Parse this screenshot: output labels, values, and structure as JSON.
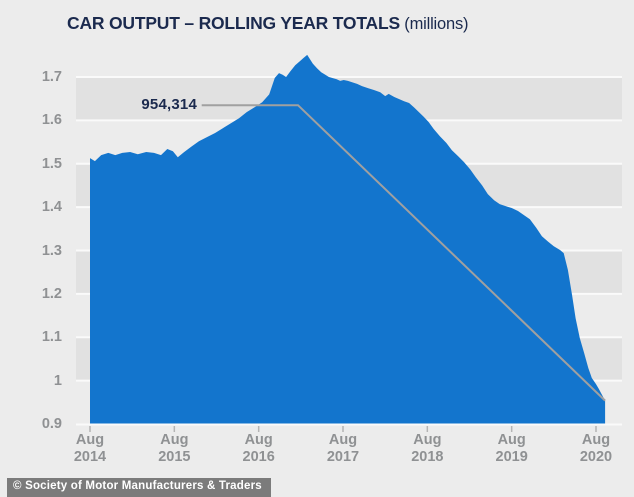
{
  "title": {
    "main": "CAR OUTPUT – ROLLING YEAR TOTALS",
    "suffix": " (millions)"
  },
  "footer": {
    "credit": "© Society of Motor Manufacturers & Traders"
  },
  "colors": {
    "background": "#ececec",
    "band": "#e1e1e1",
    "gridline": "#fafafa",
    "area_blue": "#1375cd",
    "navy_text": "#1b2a4e",
    "gray_text": "#8f9193",
    "leader_line": "#a0a0a0",
    "tick": "#b5b5b5",
    "footer_bg": "#7b7b7b",
    "footer_text": "#ffffff"
  },
  "chart_data": {
    "type": "area",
    "title": "CAR OUTPUT – ROLLING YEAR TOTALS (millions)",
    "xlabel": "",
    "ylabel": "millions (rolling year total)",
    "x_unit": "months since Aug 2014",
    "xlim": [
      0,
      73.3
    ],
    "ylim": [
      0.9,
      1.7
    ],
    "grid": "horizontal alternating bands with white gridlines every 0.1",
    "grid_bands": [
      [
        1.6,
        1.7
      ],
      [
        1.4,
        1.5
      ],
      [
        1.2,
        1.3
      ],
      [
        1.0,
        1.1
      ]
    ],
    "y_ticks": [
      {
        "v": 1.7,
        "label": "1.7"
      },
      {
        "v": 1.6,
        "label": "1.6"
      },
      {
        "v": 1.5,
        "label": "1.5"
      },
      {
        "v": 1.4,
        "label": "1.4"
      },
      {
        "v": 1.3,
        "label": "1.3"
      },
      {
        "v": 1.2,
        "label": "1.2"
      },
      {
        "v": 1.1,
        "label": "1.1"
      },
      {
        "v": 1.0,
        "label": "1"
      },
      {
        "v": 0.9,
        "label": "0.9"
      }
    ],
    "x_ticks": [
      {
        "m": 0,
        "label": "Aug\n2014"
      },
      {
        "m": 12,
        "label": "Aug\n2015"
      },
      {
        "m": 24,
        "label": "Aug\n2016"
      },
      {
        "m": 36,
        "label": "Aug\n2017"
      },
      {
        "m": 48,
        "label": "Aug\n2018"
      },
      {
        "m": 60,
        "label": "Aug\n2019"
      },
      {
        "m": 72,
        "label": "Aug\n2020"
      }
    ],
    "annotation": {
      "label": "954,314",
      "value_units": 954314,
      "value_millions": 0.954,
      "line_value": 1.635,
      "from_month": 15.9,
      "bend_month": 29.6
    },
    "points": [
      [
        0,
        1.513
      ],
      [
        0.7,
        1.506
      ],
      [
        1.6,
        1.52
      ],
      [
        2.6,
        1.525
      ],
      [
        3.6,
        1.52
      ],
      [
        4.6,
        1.525
      ],
      [
        5.7,
        1.527
      ],
      [
        6.8,
        1.522
      ],
      [
        8,
        1.527
      ],
      [
        9.1,
        1.525
      ],
      [
        10.1,
        1.52
      ],
      [
        11,
        1.534
      ],
      [
        11.8,
        1.529
      ],
      [
        12.5,
        1.515
      ],
      [
        13.4,
        1.527
      ],
      [
        14.4,
        1.539
      ],
      [
        15.5,
        1.552
      ],
      [
        16.6,
        1.561
      ],
      [
        17.8,
        1.571
      ],
      [
        18.9,
        1.582
      ],
      [
        20.1,
        1.594
      ],
      [
        21.2,
        1.605
      ],
      [
        22.3,
        1.619
      ],
      [
        23.5,
        1.631
      ],
      [
        24.5,
        1.642
      ],
      [
        25.5,
        1.66
      ],
      [
        26.3,
        1.698
      ],
      [
        26.9,
        1.709
      ],
      [
        27.4,
        1.705
      ],
      [
        27.9,
        1.7
      ],
      [
        28.5,
        1.713
      ],
      [
        29.2,
        1.727
      ],
      [
        29.9,
        1.737
      ],
      [
        30.4,
        1.744
      ],
      [
        30.9,
        1.751
      ],
      [
        31.3,
        1.741
      ],
      [
        31.7,
        1.731
      ],
      [
        32.3,
        1.72
      ],
      [
        32.9,
        1.711
      ],
      [
        33.4,
        1.706
      ],
      [
        34,
        1.7
      ],
      [
        34.6,
        1.697
      ],
      [
        35.1,
        1.695
      ],
      [
        35.6,
        1.691
      ],
      [
        36.1,
        1.693
      ],
      [
        36.7,
        1.691
      ],
      [
        37.3,
        1.688
      ],
      [
        38,
        1.684
      ],
      [
        38.7,
        1.679
      ],
      [
        39.6,
        1.674
      ],
      [
        40.4,
        1.67
      ],
      [
        41.3,
        1.665
      ],
      [
        42,
        1.656
      ],
      [
        42.5,
        1.661
      ],
      [
        43.3,
        1.654
      ],
      [
        44,
        1.649
      ],
      [
        44.7,
        1.644
      ],
      [
        45.4,
        1.64
      ],
      [
        46.1,
        1.63
      ],
      [
        46.8,
        1.619
      ],
      [
        47.5,
        1.608
      ],
      [
        48.2,
        1.596
      ],
      [
        48.9,
        1.58
      ],
      [
        49.8,
        1.563
      ],
      [
        50.7,
        1.548
      ],
      [
        51.5,
        1.531
      ],
      [
        52.4,
        1.517
      ],
      [
        53.2,
        1.504
      ],
      [
        54.1,
        1.487
      ],
      [
        54.9,
        1.469
      ],
      [
        55.8,
        1.45
      ],
      [
        56.6,
        1.43
      ],
      [
        57.5,
        1.416
      ],
      [
        58.3,
        1.407
      ],
      [
        59.2,
        1.402
      ],
      [
        60,
        1.398
      ],
      [
        60.9,
        1.391
      ],
      [
        61.8,
        1.381
      ],
      [
        62.6,
        1.372
      ],
      [
        63.5,
        1.352
      ],
      [
        64.3,
        1.333
      ],
      [
        65.2,
        1.32
      ],
      [
        66,
        1.31
      ],
      [
        66.9,
        1.301
      ],
      [
        67.4,
        1.294
      ],
      [
        68,
        1.255
      ],
      [
        68.6,
        1.197
      ],
      [
        69.1,
        1.144
      ],
      [
        69.7,
        1.098
      ],
      [
        70.3,
        1.064
      ],
      [
        70.9,
        1.029
      ],
      [
        71.4,
        1.006
      ],
      [
        72,
        0.992
      ],
      [
        72.4,
        0.981
      ],
      [
        72.8,
        0.969
      ],
      [
        73.3,
        0.954
      ]
    ]
  }
}
